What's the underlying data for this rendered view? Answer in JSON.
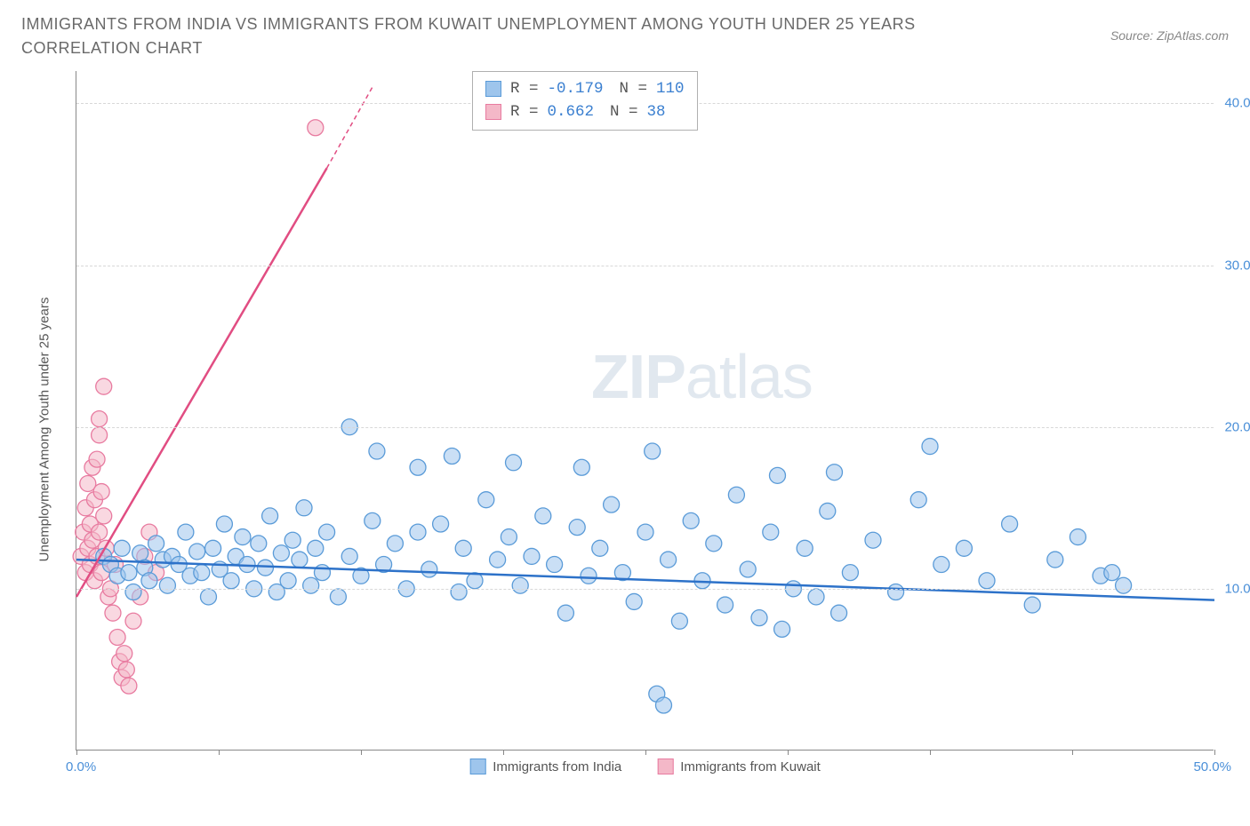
{
  "header": {
    "title": "IMMIGRANTS FROM INDIA VS IMMIGRANTS FROM KUWAIT UNEMPLOYMENT AMONG YOUTH UNDER 25 YEARS CORRELATION CHART",
    "source": "Source: ZipAtlas.com"
  },
  "chart": {
    "type": "scatter",
    "y_axis_label": "Unemployment Among Youth under 25 years",
    "xlim": [
      0,
      50
    ],
    "ylim": [
      0,
      42
    ],
    "x_min_label": "0.0%",
    "x_max_label": "50.0%",
    "y_ticks": [
      10,
      20,
      30,
      40
    ],
    "y_tick_labels": [
      "10.0%",
      "20.0%",
      "30.0%",
      "40.0%"
    ],
    "x_tick_positions": [
      0,
      6.25,
      12.5,
      18.75,
      25,
      31.25,
      37.5,
      43.75,
      50
    ],
    "background_color": "#ffffff",
    "grid_color": "#d8d8d8",
    "marker_radius": 9,
    "marker_opacity": 0.55,
    "line_width": 2.5,
    "watermark": {
      "zip": "ZIP",
      "atlas": "atlas"
    },
    "series": [
      {
        "name": "Immigrants from India",
        "color_fill": "#9ec5ec",
        "color_stroke": "#5a9bd8",
        "trend_color": "#2d72c9",
        "trend": {
          "x1": 0,
          "y1": 11.8,
          "x2": 50,
          "y2": 9.3
        },
        "r_label": "R =",
        "r_value": "-0.179",
        "n_label": "N =",
        "n_value": "110",
        "points": [
          [
            1.2,
            12.0
          ],
          [
            1.5,
            11.5
          ],
          [
            1.8,
            10.8
          ],
          [
            2.0,
            12.5
          ],
          [
            2.3,
            11.0
          ],
          [
            2.5,
            9.8
          ],
          [
            2.8,
            12.2
          ],
          [
            3.0,
            11.3
          ],
          [
            3.2,
            10.5
          ],
          [
            3.5,
            12.8
          ],
          [
            3.8,
            11.8
          ],
          [
            4.0,
            10.2
          ],
          [
            4.2,
            12.0
          ],
          [
            4.5,
            11.5
          ],
          [
            4.8,
            13.5
          ],
          [
            5.0,
            10.8
          ],
          [
            5.3,
            12.3
          ],
          [
            5.5,
            11.0
          ],
          [
            5.8,
            9.5
          ],
          [
            6.0,
            12.5
          ],
          [
            6.3,
            11.2
          ],
          [
            6.5,
            14.0
          ],
          [
            6.8,
            10.5
          ],
          [
            7.0,
            12.0
          ],
          [
            7.3,
            13.2
          ],
          [
            7.5,
            11.5
          ],
          [
            7.8,
            10.0
          ],
          [
            8.0,
            12.8
          ],
          [
            8.3,
            11.3
          ],
          [
            8.5,
            14.5
          ],
          [
            8.8,
            9.8
          ],
          [
            9.0,
            12.2
          ],
          [
            9.3,
            10.5
          ],
          [
            9.5,
            13.0
          ],
          [
            9.8,
            11.8
          ],
          [
            10.0,
            15.0
          ],
          [
            10.3,
            10.2
          ],
          [
            10.5,
            12.5
          ],
          [
            10.8,
            11.0
          ],
          [
            11.0,
            13.5
          ],
          [
            11.5,
            9.5
          ],
          [
            12.0,
            12.0
          ],
          [
            12.0,
            20.0
          ],
          [
            12.5,
            10.8
          ],
          [
            13.0,
            14.2
          ],
          [
            13.2,
            18.5
          ],
          [
            13.5,
            11.5
          ],
          [
            14.0,
            12.8
          ],
          [
            14.5,
            10.0
          ],
          [
            15.0,
            13.5
          ],
          [
            15.0,
            17.5
          ],
          [
            15.5,
            11.2
          ],
          [
            16.0,
            14.0
          ],
          [
            16.5,
            18.2
          ],
          [
            16.8,
            9.8
          ],
          [
            17.0,
            12.5
          ],
          [
            17.5,
            10.5
          ],
          [
            18.0,
            15.5
          ],
          [
            18.5,
            11.8
          ],
          [
            19.0,
            13.2
          ],
          [
            19.2,
            17.8
          ],
          [
            19.5,
            10.2
          ],
          [
            20.0,
            12.0
          ],
          [
            20.5,
            14.5
          ],
          [
            21.0,
            11.5
          ],
          [
            21.5,
            8.5
          ],
          [
            22.0,
            13.8
          ],
          [
            22.2,
            17.5
          ],
          [
            22.5,
            10.8
          ],
          [
            23.0,
            12.5
          ],
          [
            23.5,
            15.2
          ],
          [
            24.0,
            11.0
          ],
          [
            24.5,
            9.2
          ],
          [
            25.0,
            13.5
          ],
          [
            25.3,
            18.5
          ],
          [
            25.5,
            3.5
          ],
          [
            25.8,
            2.8
          ],
          [
            26.0,
            11.8
          ],
          [
            26.5,
            8.0
          ],
          [
            27.0,
            14.2
          ],
          [
            27.5,
            10.5
          ],
          [
            28.0,
            12.8
          ],
          [
            28.5,
            9.0
          ],
          [
            29.0,
            15.8
          ],
          [
            29.5,
            11.2
          ],
          [
            30.0,
            8.2
          ],
          [
            30.5,
            13.5
          ],
          [
            30.8,
            17.0
          ],
          [
            31.0,
            7.5
          ],
          [
            31.5,
            10.0
          ],
          [
            32.0,
            12.5
          ],
          [
            32.5,
            9.5
          ],
          [
            33.0,
            14.8
          ],
          [
            33.3,
            17.2
          ],
          [
            33.5,
            8.5
          ],
          [
            34.0,
            11.0
          ],
          [
            35.0,
            13.0
          ],
          [
            36.0,
            9.8
          ],
          [
            37.0,
            15.5
          ],
          [
            37.5,
            18.8
          ],
          [
            38.0,
            11.5
          ],
          [
            39.0,
            12.5
          ],
          [
            40.0,
            10.5
          ],
          [
            41.0,
            14.0
          ],
          [
            42.0,
            9.0
          ],
          [
            43.0,
            11.8
          ],
          [
            44.0,
            13.2
          ],
          [
            45.0,
            10.8
          ],
          [
            45.5,
            11.0
          ],
          [
            46.0,
            10.2
          ]
        ]
      },
      {
        "name": "Immigrants from Kuwait",
        "color_fill": "#f4b8c8",
        "color_stroke": "#e87ba0",
        "trend_color": "#e14d82",
        "trend": {
          "x1": 0,
          "y1": 9.5,
          "x2": 11.0,
          "y2": 36.0
        },
        "trend_dash": {
          "x1": 11.0,
          "y1": 36.0,
          "x2": 13.0,
          "y2": 41.0
        },
        "r_label": "R =",
        "r_value": " 0.662",
        "n_label": "N =",
        "n_value": " 38",
        "points": [
          [
            0.2,
            12.0
          ],
          [
            0.3,
            13.5
          ],
          [
            0.4,
            11.0
          ],
          [
            0.4,
            15.0
          ],
          [
            0.5,
            12.5
          ],
          [
            0.5,
            16.5
          ],
          [
            0.6,
            11.5
          ],
          [
            0.6,
            14.0
          ],
          [
            0.7,
            13.0
          ],
          [
            0.7,
            17.5
          ],
          [
            0.8,
            10.5
          ],
          [
            0.8,
            15.5
          ],
          [
            0.9,
            12.0
          ],
          [
            0.9,
            18.0
          ],
          [
            1.0,
            13.5
          ],
          [
            1.0,
            19.5
          ],
          [
            1.1,
            11.0
          ],
          [
            1.1,
            16.0
          ],
          [
            1.2,
            14.5
          ],
          [
            1.2,
            22.5
          ],
          [
            1.3,
            12.5
          ],
          [
            1.4,
            9.5
          ],
          [
            1.5,
            10.0
          ],
          [
            1.6,
            8.5
          ],
          [
            1.7,
            11.5
          ],
          [
            1.8,
            7.0
          ],
          [
            1.9,
            5.5
          ],
          [
            2.0,
            4.5
          ],
          [
            2.1,
            6.0
          ],
          [
            2.2,
            5.0
          ],
          [
            2.3,
            4.0
          ],
          [
            2.5,
            8.0
          ],
          [
            2.8,
            9.5
          ],
          [
            3.0,
            12.0
          ],
          [
            3.2,
            13.5
          ],
          [
            3.5,
            11.0
          ],
          [
            10.5,
            38.5
          ],
          [
            1.0,
            20.5
          ]
        ]
      }
    ],
    "legend_bottom": [
      {
        "label": "Immigrants from India",
        "fill": "#9ec5ec",
        "stroke": "#5a9bd8"
      },
      {
        "label": "Immigrants from Kuwait",
        "fill": "#f4b8c8",
        "stroke": "#e87ba0"
      }
    ]
  }
}
